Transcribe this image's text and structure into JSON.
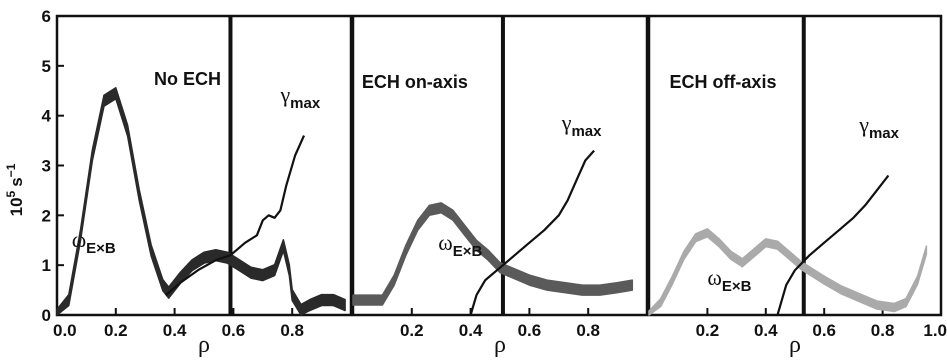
{
  "chart_data": {
    "type": "line",
    "ylabel_base": "10",
    "ylabel_exp": "5",
    "ylabel_unit": "s",
    "ylabel_unit_exp": "−1",
    "yticks": [
      "0",
      "1",
      "2",
      "3",
      "4",
      "5",
      "6"
    ],
    "ylim": [
      0,
      6
    ],
    "panels": [
      {
        "title": "No ECH",
        "xlabel": "ρ",
        "xlim": [
          0.0,
          1.0
        ],
        "xticks": [
          "0.0",
          "0.2",
          "0.4",
          "0.6",
          "0.8"
        ],
        "vline_rho": 0.59,
        "omega_label": "ω",
        "omega_sub": "E×B",
        "gamma_label": "γ",
        "gamma_sub": "max",
        "omega_color": "#2a2a2a",
        "omega_band_width": 0.22,
        "omega_ExB": {
          "rho": [
            0.0,
            0.04,
            0.08,
            0.12,
            0.16,
            0.2,
            0.24,
            0.28,
            0.32,
            0.36,
            0.38,
            0.42,
            0.46,
            0.5,
            0.54,
            0.58,
            0.62,
            0.66,
            0.7,
            0.74,
            0.77,
            0.79,
            0.8,
            0.83,
            0.86,
            0.9,
            0.94,
            0.98
          ],
          "value": [
            0.0,
            0.3,
            1.6,
            3.2,
            4.3,
            4.45,
            3.7,
            2.4,
            1.3,
            0.6,
            0.45,
            0.75,
            1.0,
            1.15,
            1.2,
            1.15,
            1.0,
            0.85,
            0.8,
            0.9,
            1.4,
            0.9,
            0.4,
            0.1,
            0.2,
            0.3,
            0.3,
            0.2
          ]
        },
        "gamma_max": {
          "rho": [
            0.37,
            0.42,
            0.48,
            0.54,
            0.59,
            0.64,
            0.68,
            0.7,
            0.72,
            0.74,
            0.76,
            0.78,
            0.81,
            0.84
          ],
          "value": [
            0.4,
            0.65,
            0.9,
            1.1,
            1.2,
            1.45,
            1.6,
            1.9,
            2.0,
            1.95,
            2.1,
            2.6,
            3.2,
            3.6
          ]
        }
      },
      {
        "title": "ECH on-axis",
        "xlabel": "ρ",
        "xlim": [
          0.0,
          1.0
        ],
        "xticks": [
          "0.2",
          "0.4",
          "0.6",
          "0.8"
        ],
        "vline_rho": 0.51,
        "omega_label": "ω",
        "omega_sub": "E×B",
        "gamma_label": "γ",
        "gamma_sub": "max",
        "omega_color": "#5a5a5a",
        "omega_band_width": 0.2,
        "omega_ExB": {
          "rho": [
            0.0,
            0.04,
            0.1,
            0.14,
            0.18,
            0.22,
            0.26,
            0.3,
            0.34,
            0.38,
            0.42,
            0.46,
            0.5,
            0.54,
            0.6,
            0.66,
            0.72,
            0.78,
            0.84,
            0.9,
            0.95
          ],
          "value": [
            0.3,
            0.3,
            0.3,
            0.7,
            1.3,
            1.8,
            2.1,
            2.15,
            2.0,
            1.7,
            1.4,
            1.2,
            0.95,
            0.85,
            0.7,
            0.6,
            0.55,
            0.5,
            0.5,
            0.55,
            0.6
          ]
        },
        "gamma_max": {
          "rho": [
            0.4,
            0.42,
            0.45,
            0.5,
            0.55,
            0.6,
            0.65,
            0.7,
            0.73,
            0.76,
            0.79,
            0.82
          ],
          "value": [
            0.0,
            0.4,
            0.7,
            0.95,
            1.2,
            1.45,
            1.7,
            2.0,
            2.3,
            2.7,
            3.1,
            3.3
          ]
        }
      },
      {
        "title": "ECH off-axis",
        "xlabel": "ρ",
        "xlim": [
          0.0,
          1.0
        ],
        "xticks": [
          "0.2",
          "0.4",
          "0.6",
          "0.8",
          "1.0"
        ],
        "vline_rho": 0.53,
        "omega_label": "ω",
        "omega_sub": "E×B",
        "gamma_label": "γ",
        "gamma_sub": "max",
        "omega_color": "#aaaaaa",
        "omega_band_width": 0.16,
        "omega_ExB": {
          "rho": [
            0.0,
            0.04,
            0.08,
            0.12,
            0.16,
            0.2,
            0.24,
            0.28,
            0.32,
            0.36,
            0.4,
            0.44,
            0.48,
            0.52,
            0.56,
            0.6,
            0.66,
            0.72,
            0.78,
            0.84,
            0.88,
            0.92,
            0.95
          ],
          "value": [
            0.0,
            0.25,
            0.7,
            1.2,
            1.55,
            1.65,
            1.45,
            1.2,
            1.05,
            1.25,
            1.45,
            1.4,
            1.2,
            1.0,
            0.85,
            0.7,
            0.5,
            0.35,
            0.2,
            0.15,
            0.25,
            0.7,
            1.3
          ]
        },
        "gamma_max": {
          "rho": [
            0.44,
            0.47,
            0.5,
            0.55,
            0.6,
            0.65,
            0.7,
            0.74,
            0.78,
            0.82
          ],
          "value": [
            0.0,
            0.6,
            0.9,
            1.2,
            1.45,
            1.7,
            1.95,
            2.2,
            2.5,
            2.8
          ]
        }
      }
    ]
  }
}
